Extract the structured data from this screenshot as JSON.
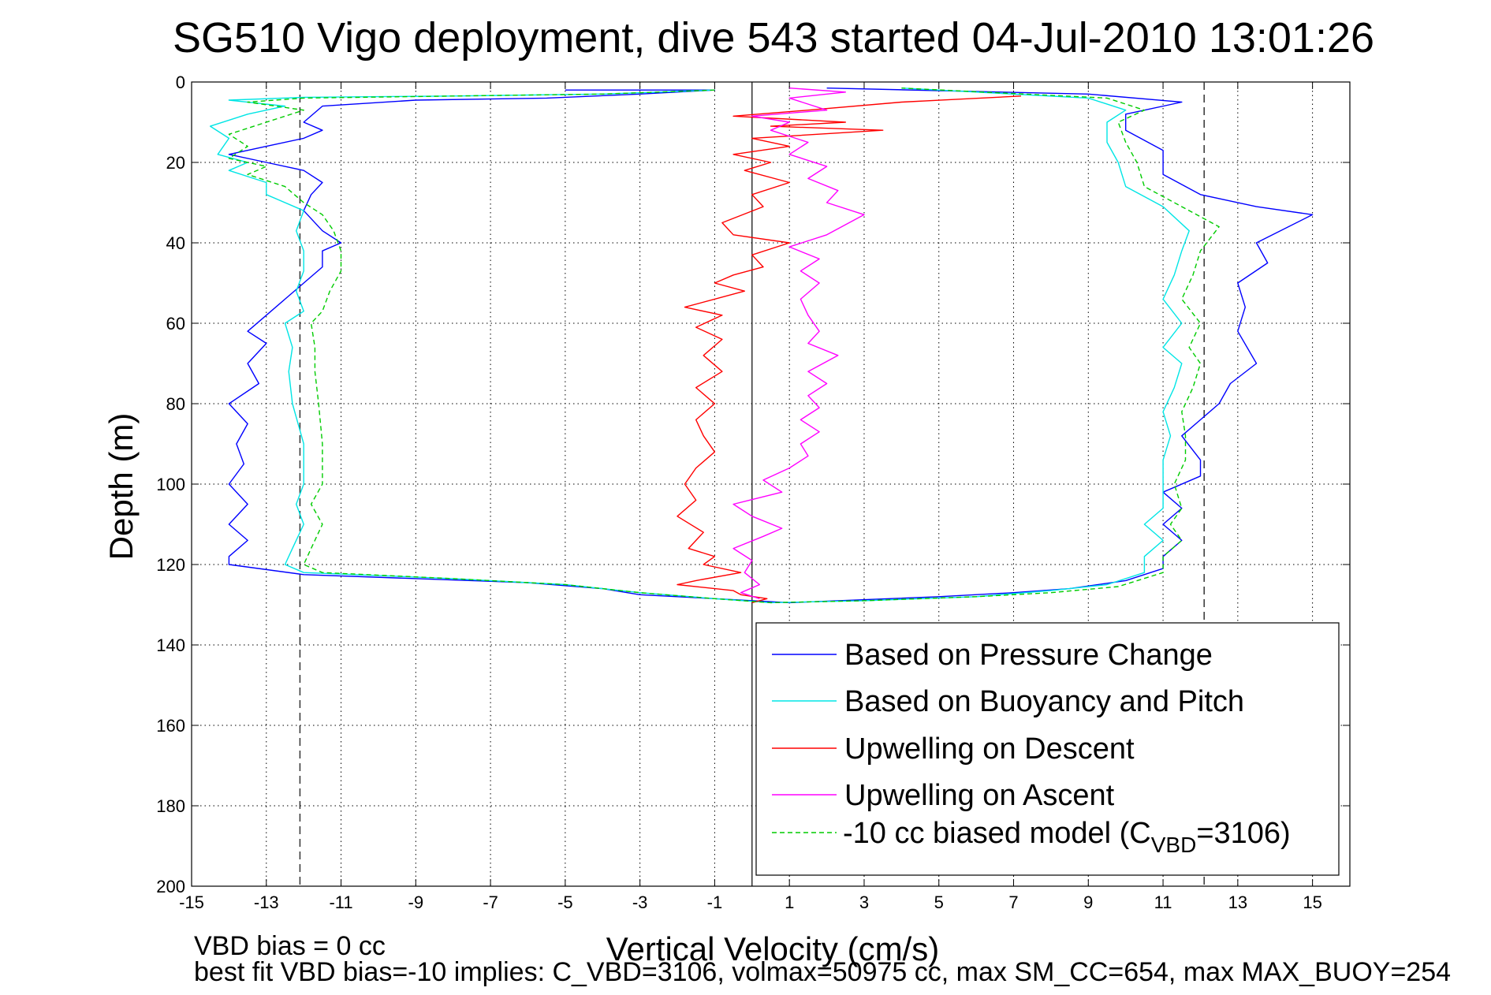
{
  "chart_data": {
    "type": "line",
    "title": "SG510 Vigo deployment, dive 543 started 04-Jul-2010 13:01:26",
    "xlabel": "Vertical Velocity (cm/s)",
    "ylabel": "Depth (m)",
    "xlim": [
      -15,
      16
    ],
    "ylim": [
      0,
      200
    ],
    "y_reversed": true,
    "xticks": [
      -15,
      -13,
      -11,
      -9,
      -7,
      -5,
      -3,
      -1,
      1,
      3,
      5,
      7,
      9,
      11,
      13,
      15
    ],
    "yticks": [
      0,
      20,
      40,
      60,
      80,
      100,
      120,
      140,
      160,
      180,
      200
    ],
    "grid": true,
    "legend_position": "lower-right",
    "reference_lines": {
      "zero_line_x": 0,
      "dashed_x": [
        -12.1,
        12.1
      ]
    },
    "series": [
      {
        "name": "Based on Pressure Change",
        "color": "#0000ff",
        "dash": false,
        "points": [
          [
            -5.0,
            2
          ],
          [
            -1.0,
            2
          ],
          [
            -3.0,
            3
          ],
          [
            -5.5,
            4
          ],
          [
            -9.0,
            4.5
          ],
          [
            -11.5,
            6
          ],
          [
            -12.0,
            10
          ],
          [
            -11.5,
            12
          ],
          [
            -12.0,
            14
          ],
          [
            -13.0,
            16
          ],
          [
            -14.0,
            18
          ],
          [
            -13.0,
            20
          ],
          [
            -12.0,
            22
          ],
          [
            -11.5,
            25
          ],
          [
            -11.8,
            28
          ],
          [
            -12.0,
            32
          ],
          [
            -11.5,
            37
          ],
          [
            -11.0,
            40
          ],
          [
            -11.5,
            42
          ],
          [
            -11.5,
            46
          ],
          [
            -12.0,
            50
          ],
          [
            -12.5,
            54
          ],
          [
            -13.0,
            58
          ],
          [
            -13.5,
            62
          ],
          [
            -13.0,
            65
          ],
          [
            -13.5,
            70
          ],
          [
            -13.2,
            75
          ],
          [
            -14.0,
            80
          ],
          [
            -13.5,
            85
          ],
          [
            -13.8,
            90
          ],
          [
            -13.6,
            95
          ],
          [
            -14.0,
            100
          ],
          [
            -13.5,
            105
          ],
          [
            -14.0,
            110
          ],
          [
            -13.5,
            114
          ],
          [
            -14.0,
            118
          ],
          [
            -14.0,
            120
          ],
          [
            -12.0,
            122.5
          ],
          [
            -6.0,
            124.5
          ],
          [
            -4.0,
            126
          ],
          [
            -3.0,
            127.5
          ],
          [
            -1.0,
            128.5
          ],
          [
            1.0,
            129.5
          ],
          [
            5.0,
            128
          ],
          [
            7.0,
            127
          ],
          [
            8.5,
            126
          ],
          [
            10.0,
            124
          ],
          [
            11.0,
            121
          ],
          [
            11.0,
            118
          ],
          [
            11.5,
            114
          ],
          [
            11.0,
            110
          ],
          [
            11.5,
            106
          ],
          [
            11.0,
            102
          ],
          [
            12.0,
            98
          ],
          [
            12.0,
            94
          ],
          [
            11.5,
            88
          ],
          [
            12.0,
            84
          ],
          [
            12.5,
            80
          ],
          [
            12.8,
            75
          ],
          [
            13.5,
            70
          ],
          [
            13.0,
            62
          ],
          [
            13.2,
            56
          ],
          [
            13.0,
            50
          ],
          [
            13.8,
            45
          ],
          [
            13.5,
            40
          ],
          [
            15.0,
            33
          ],
          [
            13.5,
            31
          ],
          [
            12.0,
            28
          ],
          [
            11.0,
            23
          ],
          [
            11.0,
            17
          ],
          [
            10.0,
            12
          ],
          [
            10.0,
            8
          ],
          [
            11.5,
            5
          ],
          [
            9.0,
            3
          ],
          [
            2.0,
            1.5
          ]
        ]
      },
      {
        "name": "Based on Buoyancy and Pitch",
        "color": "#00e5e5",
        "dash": false,
        "points": [
          [
            -1.0,
            2
          ],
          [
            -4.0,
            3
          ],
          [
            -8.0,
            3.5
          ],
          [
            -12.0,
            3.8
          ],
          [
            -14.0,
            4.5
          ],
          [
            -12.5,
            6
          ],
          [
            -13.5,
            8
          ],
          [
            -14.5,
            11
          ],
          [
            -14.0,
            14
          ],
          [
            -14.3,
            18
          ],
          [
            -13.5,
            20
          ],
          [
            -14.0,
            22
          ],
          [
            -13.0,
            25
          ],
          [
            -13.0,
            28
          ],
          [
            -12.0,
            32
          ],
          [
            -12.2,
            37
          ],
          [
            -12.0,
            42
          ],
          [
            -12.0,
            47
          ],
          [
            -12.2,
            52
          ],
          [
            -12.0,
            57
          ],
          [
            -12.5,
            60
          ],
          [
            -12.3,
            66
          ],
          [
            -12.4,
            72
          ],
          [
            -12.3,
            80
          ],
          [
            -12.0,
            90
          ],
          [
            -12.0,
            100
          ],
          [
            -12.2,
            105
          ],
          [
            -12.0,
            110
          ],
          [
            -12.3,
            116
          ],
          [
            -12.5,
            120
          ],
          [
            -12.0,
            122
          ],
          [
            -8.0,
            123.5
          ],
          [
            -5.0,
            125
          ],
          [
            -3.0,
            127
          ],
          [
            -1.0,
            128.5
          ],
          [
            0.5,
            129.5
          ],
          [
            3.0,
            129
          ],
          [
            6.0,
            128
          ],
          [
            8.0,
            126.5
          ],
          [
            9.5,
            125
          ],
          [
            10.5,
            122
          ],
          [
            10.5,
            118
          ],
          [
            11.0,
            114
          ],
          [
            10.5,
            110
          ],
          [
            11.0,
            106
          ],
          [
            11.0,
            100
          ],
          [
            11.0,
            94
          ],
          [
            11.2,
            88
          ],
          [
            11.0,
            82
          ],
          [
            11.3,
            76
          ],
          [
            11.5,
            70
          ],
          [
            11.0,
            66
          ],
          [
            11.5,
            60
          ],
          [
            11.0,
            54
          ],
          [
            11.3,
            48
          ],
          [
            11.5,
            42
          ],
          [
            11.7,
            37
          ],
          [
            11.0,
            31
          ],
          [
            10.0,
            26
          ],
          [
            9.8,
            20
          ],
          [
            9.5,
            15
          ],
          [
            9.5,
            10
          ],
          [
            10.0,
            7
          ],
          [
            9.0,
            4
          ],
          [
            4.0,
            1.5
          ]
        ]
      },
      {
        "name": "Upwelling on Descent",
        "color": "#ff0000",
        "dash": false,
        "points": [
          [
            7.2,
            3.5
          ],
          [
            4.0,
            5
          ],
          [
            1.5,
            7
          ],
          [
            -0.5,
            8.5
          ],
          [
            2.5,
            10
          ],
          [
            0.5,
            11
          ],
          [
            3.5,
            12
          ],
          [
            0.0,
            14
          ],
          [
            1.0,
            16
          ],
          [
            -0.5,
            18
          ],
          [
            0.5,
            20
          ],
          [
            -0.2,
            22
          ],
          [
            1.0,
            25
          ],
          [
            0.0,
            28
          ],
          [
            0.3,
            31
          ],
          [
            -0.8,
            35
          ],
          [
            -0.5,
            38
          ],
          [
            1.0,
            40
          ],
          [
            0.0,
            43
          ],
          [
            0.3,
            46
          ],
          [
            -0.5,
            48
          ],
          [
            -1.0,
            50
          ],
          [
            -0.2,
            52
          ],
          [
            -1.8,
            56
          ],
          [
            -0.8,
            58
          ],
          [
            -1.5,
            61
          ],
          [
            -0.8,
            64
          ],
          [
            -1.3,
            68
          ],
          [
            -0.8,
            72
          ],
          [
            -1.5,
            76
          ],
          [
            -1.0,
            80
          ],
          [
            -1.5,
            84
          ],
          [
            -1.3,
            88
          ],
          [
            -1.0,
            92
          ],
          [
            -1.5,
            96
          ],
          [
            -1.8,
            100
          ],
          [
            -1.5,
            104
          ],
          [
            -2.0,
            108
          ],
          [
            -1.3,
            112
          ],
          [
            -1.7,
            116
          ],
          [
            -1.0,
            118
          ],
          [
            -1.3,
            120
          ],
          [
            -0.3,
            122
          ],
          [
            -1.5,
            124
          ],
          [
            -2.0,
            125
          ],
          [
            -0.5,
            126.5
          ],
          [
            -0.3,
            127.5
          ],
          [
            0.4,
            128.5
          ],
          [
            0.0,
            129.5
          ]
        ]
      },
      {
        "name": "Upwelling on Ascent",
        "color": "#ff00ff",
        "dash": false,
        "points": [
          [
            0.2,
            128.5
          ],
          [
            -0.3,
            127
          ],
          [
            0.2,
            125
          ],
          [
            -0.2,
            122
          ],
          [
            0.0,
            119
          ],
          [
            -0.5,
            116
          ],
          [
            0.3,
            113
          ],
          [
            0.8,
            111
          ],
          [
            0.0,
            108
          ],
          [
            -0.5,
            105
          ],
          [
            0.8,
            102
          ],
          [
            0.3,
            99
          ],
          [
            1.0,
            96
          ],
          [
            1.5,
            93
          ],
          [
            1.3,
            90
          ],
          [
            1.8,
            87
          ],
          [
            1.3,
            84
          ],
          [
            1.8,
            81
          ],
          [
            1.5,
            78
          ],
          [
            2.0,
            75
          ],
          [
            1.5,
            72
          ],
          [
            2.3,
            68
          ],
          [
            1.5,
            65
          ],
          [
            1.8,
            62
          ],
          [
            1.5,
            58
          ],
          [
            1.3,
            54
          ],
          [
            1.8,
            50
          ],
          [
            1.3,
            47
          ],
          [
            1.8,
            44
          ],
          [
            1.0,
            41
          ],
          [
            2.0,
            38
          ],
          [
            3.0,
            33
          ],
          [
            2.0,
            30
          ],
          [
            2.3,
            27
          ],
          [
            1.5,
            24
          ],
          [
            2.0,
            21
          ],
          [
            1.0,
            18
          ],
          [
            1.5,
            15
          ],
          [
            0.5,
            12
          ],
          [
            1.0,
            10
          ],
          [
            0.0,
            8.5
          ],
          [
            2.0,
            7
          ],
          [
            1.0,
            4
          ],
          [
            2.5,
            2.5
          ],
          [
            1.0,
            1.5
          ]
        ]
      },
      {
        "name": "-10 cc biased model (C_VBD=3106)",
        "color": "#00cc00",
        "dash": true,
        "points": [
          [
            -1.0,
            2
          ],
          [
            -4.0,
            3
          ],
          [
            -8.0,
            3.5
          ],
          [
            -12.0,
            4
          ],
          [
            -13.5,
            5
          ],
          [
            -12.0,
            7
          ],
          [
            -13.0,
            10
          ],
          [
            -14.0,
            13
          ],
          [
            -13.5,
            16
          ],
          [
            -14.0,
            19
          ],
          [
            -13.0,
            21
          ],
          [
            -13.5,
            23
          ],
          [
            -12.5,
            26
          ],
          [
            -12.0,
            30
          ],
          [
            -11.5,
            33
          ],
          [
            -11.2,
            37
          ],
          [
            -11.0,
            42
          ],
          [
            -11.0,
            47
          ],
          [
            -11.3,
            52
          ],
          [
            -11.5,
            57
          ],
          [
            -11.8,
            60
          ],
          [
            -11.7,
            66
          ],
          [
            -11.7,
            72
          ],
          [
            -11.6,
            80
          ],
          [
            -11.5,
            90
          ],
          [
            -11.5,
            100
          ],
          [
            -11.8,
            105
          ],
          [
            -11.5,
            110
          ],
          [
            -11.8,
            116
          ],
          [
            -12.0,
            120
          ],
          [
            -11.5,
            122
          ],
          [
            -8.0,
            123.5
          ],
          [
            -5.0,
            125
          ],
          [
            -3.0,
            127
          ],
          [
            -1.0,
            128.5
          ],
          [
            0.5,
            129.5
          ],
          [
            3.0,
            129
          ],
          [
            6.0,
            128
          ],
          [
            8.0,
            127
          ],
          [
            9.8,
            125.5
          ],
          [
            11.0,
            122
          ],
          [
            11.0,
            118
          ],
          [
            11.5,
            114
          ],
          [
            11.2,
            110
          ],
          [
            11.5,
            106
          ],
          [
            11.3,
            100
          ],
          [
            11.6,
            94
          ],
          [
            11.6,
            88
          ],
          [
            11.5,
            82
          ],
          [
            11.8,
            76
          ],
          [
            12.0,
            70
          ],
          [
            11.7,
            66
          ],
          [
            12.0,
            60
          ],
          [
            11.5,
            54
          ],
          [
            11.8,
            48
          ],
          [
            12.0,
            42
          ],
          [
            12.5,
            36
          ],
          [
            11.5,
            31
          ],
          [
            10.5,
            26
          ],
          [
            10.3,
            20
          ],
          [
            10.0,
            15
          ],
          [
            9.8,
            10
          ],
          [
            10.5,
            7
          ],
          [
            9.5,
            4
          ],
          [
            4.0,
            1.5
          ]
        ]
      }
    ],
    "legend": {
      "entries": [
        "Based on Pressure Change",
        "Based on Buoyancy and Pitch",
        "Upwelling on Descent",
        "Upwelling on Ascent"
      ],
      "model_entry": {
        "prefix": "-10 cc biased model (C",
        "subscript": "VBD",
        "suffix": "=3106)"
      }
    },
    "annotations": [
      "VBD bias = 0 cc",
      "best fit VBD bias=-10 implies: C_VBD=3106, volmax=50975 cc, max SM_CC=654, max MAX_BUOY=254"
    ]
  }
}
